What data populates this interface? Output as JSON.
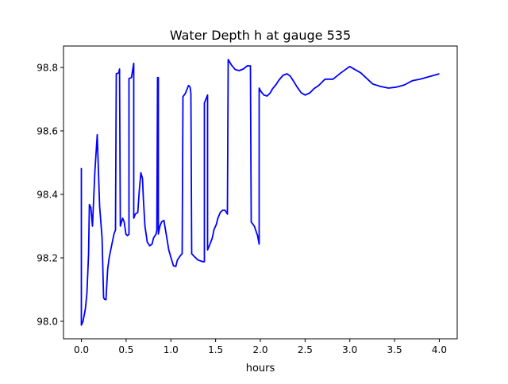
{
  "chart_data": {
    "type": "line",
    "title": "Water Depth h at gauge 535",
    "xlabel": "hours",
    "ylabel": "",
    "xlim": [
      -0.2,
      4.2
    ],
    "ylim": [
      97.945,
      98.8675
    ],
    "xticks": [
      0.0,
      0.5,
      1.0,
      1.5,
      2.0,
      2.5,
      3.0,
      3.5,
      4.0
    ],
    "xtick_labels": [
      "0.0",
      "0.5",
      "1.0",
      "1.5",
      "2.0",
      "2.5",
      "3.0",
      "3.5",
      "4.0"
    ],
    "yticks": [
      98.0,
      98.2,
      98.4,
      98.6,
      98.8
    ],
    "ytick_labels": [
      "98.0",
      "98.2",
      "98.4",
      "98.6",
      "98.8"
    ],
    "grid": false,
    "series": [
      {
        "name": "h",
        "color": "#0000ff",
        "x": [
          0,
          0,
          0.018,
          0.044,
          0.062,
          0.08,
          0.089,
          0.106,
          0.124,
          0.151,
          0.177,
          0.204,
          0.231,
          0.248,
          0.257,
          0.275,
          0.293,
          0.31,
          0.328,
          0.364,
          0.381,
          0.39,
          0.417,
          0.426,
          0.435,
          0.461,
          0.479,
          0.497,
          0.514,
          0.532,
          0.532,
          0.559,
          0.585,
          0.585,
          0.603,
          0.63,
          0.647,
          0.665,
          0.683,
          0.692,
          0.71,
          0.736,
          0.763,
          0.789,
          0.807,
          0.834,
          0.843,
          0.851,
          0.86,
          0.86,
          0.878,
          0.896,
          0.922,
          0.94,
          0.958,
          0.976,
          1.002,
          1.029,
          1.055,
          1.073,
          1.109,
          1.126,
          1.135,
          1.162,
          1.197,
          1.215,
          1.224,
          1.233,
          1.259,
          1.304,
          1.357,
          1.375,
          1.375,
          1.41,
          1.41,
          1.437,
          1.463,
          1.481,
          1.508,
          1.525,
          1.552,
          1.579,
          1.605,
          1.632,
          1.641,
          1.676,
          1.721,
          1.765,
          1.809,
          1.854,
          1.889,
          1.898,
          1.933,
          1.969,
          1.987,
          1.987,
          2.004,
          2.04,
          2.075,
          2.111,
          2.137,
          2.173,
          2.208,
          2.253,
          2.297,
          2.333,
          2.368,
          2.412,
          2.457,
          2.501,
          2.554,
          2.599,
          2.652,
          2.723,
          2.812,
          2.9,
          2.998,
          3.122,
          3.255,
          3.344,
          3.432,
          3.521,
          3.61,
          3.698,
          3.787,
          4.0
        ],
        "y": [
          98.483,
          97.988,
          98.0,
          98.038,
          98.088,
          98.213,
          98.368,
          98.358,
          98.3,
          98.475,
          98.588,
          98.363,
          98.263,
          98.075,
          98.07,
          98.068,
          98.163,
          98.2,
          98.225,
          98.275,
          98.288,
          98.78,
          98.783,
          98.795,
          98.3,
          98.325,
          98.313,
          98.275,
          98.27,
          98.275,
          98.765,
          98.768,
          98.813,
          98.325,
          98.338,
          98.343,
          98.413,
          98.468,
          98.45,
          98.388,
          98.3,
          98.25,
          98.238,
          98.243,
          98.263,
          98.275,
          98.288,
          98.768,
          98.768,
          98.275,
          98.3,
          98.313,
          98.318,
          98.288,
          98.258,
          98.225,
          98.2,
          98.175,
          98.173,
          98.193,
          98.208,
          98.213,
          98.708,
          98.718,
          98.743,
          98.738,
          98.718,
          98.213,
          98.205,
          98.193,
          98.188,
          98.188,
          98.688,
          98.713,
          98.225,
          98.243,
          98.263,
          98.288,
          98.305,
          98.325,
          98.343,
          98.35,
          98.35,
          98.338,
          98.825,
          98.808,
          98.793,
          98.79,
          98.795,
          98.805,
          98.805,
          98.313,
          98.3,
          98.27,
          98.243,
          98.735,
          98.725,
          98.713,
          98.71,
          98.72,
          98.733,
          98.745,
          98.76,
          98.775,
          98.78,
          98.773,
          98.758,
          98.738,
          98.72,
          98.713,
          98.72,
          98.733,
          98.743,
          98.763,
          98.763,
          98.783,
          98.803,
          98.783,
          98.748,
          98.74,
          98.735,
          98.738,
          98.745,
          98.758,
          98.763,
          98.78
        ]
      }
    ]
  }
}
